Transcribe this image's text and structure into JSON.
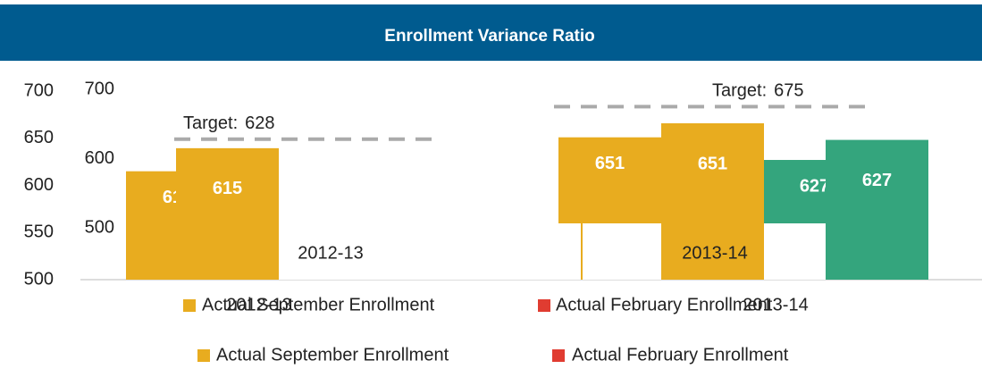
{
  "header": {
    "title": "Enrollment Variance Ratio"
  },
  "chart_data": [
    {
      "type": "bar",
      "categories": [
        "2012-13",
        "2013-14"
      ],
      "series": [
        {
          "name": "Actual September Enrollment",
          "color": "#e8ac1f",
          "values": [
            615,
            651
          ]
        },
        {
          "name": "Actual February Enrollment",
          "color": "#e03c31",
          "bar_color": "#34a57d",
          "values": [
            null,
            627
          ]
        }
      ],
      "ylim": [
        500,
        700
      ],
      "yticks": [
        500,
        550,
        600,
        650,
        700
      ],
      "legend": "bottom"
    },
    {
      "type": "bar",
      "categories": [
        "2012-13",
        "2013-14"
      ],
      "series": [
        {
          "name": "Actual September Enrollment",
          "color": "#e8ac1f",
          "values": [
            615,
            651
          ]
        },
        {
          "name": "Actual February Enrollment",
          "color": "#e03c31",
          "bar_color": "#34a57d",
          "values": [
            null,
            627
          ]
        }
      ],
      "target_label": "Target:",
      "targets": [
        628,
        675
      ],
      "ylim": [
        500,
        700
      ],
      "yticks": [
        500,
        600,
        700
      ],
      "legend": "bottom"
    }
  ]
}
